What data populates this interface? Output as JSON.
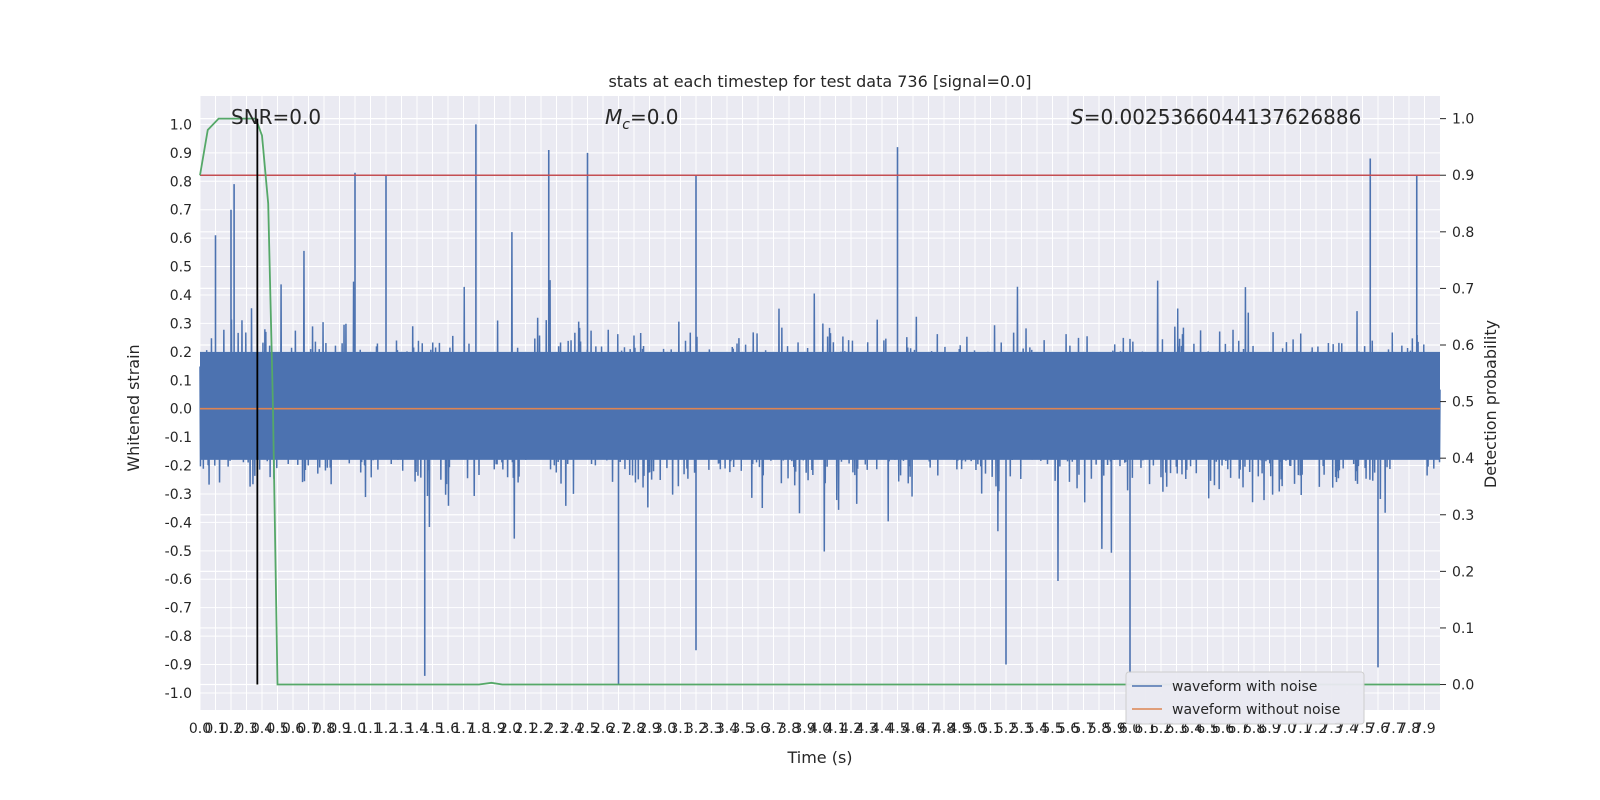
{
  "chart_data": {
    "type": "line",
    "title": "stats at each timestep for test data 736 [signal=0.0]",
    "xlabel": "Time (s)",
    "ylabel": "Whitened strain",
    "y2label": "Detection probability",
    "xlim": [
      0.0,
      8.0
    ],
    "ylim": [
      -1.06,
      1.1
    ],
    "y2lim": [
      -0.045,
      1.04
    ],
    "grid": true,
    "legend_position": "bottom-right",
    "x_ticks": [
      0.0,
      0.1,
      0.2,
      0.3,
      0.4,
      0.5,
      0.6,
      0.7,
      0.8,
      0.9,
      1.0,
      1.1,
      1.2,
      1.3,
      1.4,
      1.5,
      1.6,
      1.7,
      1.8,
      1.9,
      2.0,
      2.1,
      2.2,
      2.3,
      2.4,
      2.5,
      2.6,
      2.7,
      2.8,
      2.9,
      3.0,
      3.1,
      3.2,
      3.3,
      3.4,
      3.5,
      3.6,
      3.7,
      3.8,
      3.9,
      4.0,
      4.1,
      4.2,
      4.3,
      4.4,
      4.5,
      4.6,
      4.7,
      4.8,
      4.9,
      5.0,
      5.1,
      5.2,
      5.3,
      5.4,
      5.5,
      5.6,
      5.7,
      5.8,
      5.9,
      6.0,
      6.1,
      6.2,
      6.3,
      6.4,
      6.5,
      6.6,
      6.7,
      6.8,
      6.9,
      7.0,
      7.1,
      7.2,
      7.3,
      7.4,
      7.5,
      7.6,
      7.7,
      7.8,
      7.9
    ],
    "x_tick_labels": [
      "0.0",
      "0.1",
      "0.2",
      "0.3",
      "0.4",
      "0.5",
      "0.6",
      "0.7",
      "0.8",
      "0.9",
      "1.0",
      "1.1",
      "1.2",
      "1.3",
      "1.4",
      "1.5",
      "1.6",
      "1.7",
      "1.8",
      "1.9",
      "2.0",
      "2.1",
      "2.2",
      "2.3",
      "2.4",
      "2.5",
      "2.6",
      "2.7",
      "2.8",
      "2.9",
      "3.0",
      "3.1",
      "3.2",
      "3.3",
      "3.4",
      "3.5",
      "3.6",
      "3.7",
      "3.8",
      "3.9",
      "4.0",
      "4.1",
      "4.2",
      "4.3",
      "4.4",
      "4.5",
      "4.6",
      "4.7",
      "4.8",
      "4.9",
      "5.0",
      "5.1",
      "5.2",
      "5.3",
      "5.4",
      "5.5",
      "5.6",
      "5.7",
      "5.8",
      "5.9",
      "6.0",
      "6.1",
      "6.2",
      "6.3",
      "6.4",
      "6.5",
      "6.6",
      "6.7",
      "6.8",
      "6.9",
      "7.0",
      "7.1",
      "7.2",
      "7.3",
      "7.4",
      "7.5",
      "7.6",
      "7.7",
      "7.8",
      "7.9"
    ],
    "y_ticks": [
      1.0,
      0.9,
      0.8,
      0.7,
      0.6,
      0.5,
      0.4,
      0.3,
      0.2,
      0.1,
      0.0,
      -0.1,
      -0.2,
      -0.3,
      -0.4,
      -0.5,
      -0.6,
      -0.7,
      -0.8,
      -0.9,
      -1.0
    ],
    "y_tick_labels": [
      "1.0",
      "0.9",
      "0.8",
      "0.7",
      "0.6",
      "0.5",
      "0.4",
      "0.3",
      "0.2",
      "0.1",
      "0.0",
      "-0.1",
      "-0.2",
      "-0.3",
      "-0.4",
      "-0.5",
      "-0.6",
      "-0.7",
      "-0.8",
      "-0.9",
      "-1.0"
    ],
    "y2_ticks": [
      1.0,
      0.9,
      0.8,
      0.7,
      0.6,
      0.5,
      0.4,
      0.3,
      0.2,
      0.1,
      0.0
    ],
    "y2_tick_labels": [
      "1.0",
      "0.9",
      "0.8",
      "0.7",
      "0.6",
      "0.5",
      "0.4",
      "0.3",
      "0.2",
      "0.1",
      "0.0"
    ],
    "annotations": {
      "snr": "SNR=0.0",
      "mc_symbol": "M",
      "mc_subscript": "c",
      "mc_value": "=0.0",
      "s_symbol": "S",
      "s_value": "=0.002536604413762688​6"
    },
    "series": [
      {
        "name": "waveform with noise",
        "axis": "left",
        "color": "#4c72b0",
        "note_peaks": [
          {
            "x": 1.78,
            "y": 1.0
          },
          {
            "x": 0.1,
            "y": 0.61
          },
          {
            "x": 0.2,
            "y": 0.7
          },
          {
            "x": 0.22,
            "y": 0.79
          },
          {
            "x": 1.0,
            "y": 0.83
          },
          {
            "x": 1.2,
            "y": 0.82
          },
          {
            "x": 2.25,
            "y": 0.91
          },
          {
            "x": 2.5,
            "y": 0.9
          },
          {
            "x": 3.2,
            "y": 0.82
          },
          {
            "x": 4.5,
            "y": 0.92
          },
          {
            "x": 7.55,
            "y": 0.88
          },
          {
            "x": 7.85,
            "y": 0.82
          },
          {
            "x": 1.45,
            "y": -0.94
          },
          {
            "x": 2.7,
            "y": -0.97
          },
          {
            "x": 3.2,
            "y": -0.85
          },
          {
            "x": 6.0,
            "y": -0.93
          },
          {
            "x": 7.6,
            "y": -0.91
          },
          {
            "x": 5.2,
            "y": -0.9
          }
        ]
      },
      {
        "name": "waveform without noise",
        "axis": "left",
        "color": "#dd8452",
        "y": 0.0
      },
      {
        "name": "",
        "axis": "right",
        "color": "#55a868",
        "x": [
          0.0,
          0.05,
          0.12,
          0.2,
          0.3,
          0.36,
          0.4,
          0.44,
          0.47,
          0.5,
          1.5,
          1.8,
          1.88,
          1.95,
          2.5,
          8.0
        ],
        "y": [
          0.9,
          0.98,
          1.0,
          1.0,
          1.0,
          1.0,
          0.97,
          0.85,
          0.5,
          0.0,
          0.0,
          0.0,
          0.003,
          0.0,
          0.0,
          0.0
        ]
      }
    ],
    "threshold_line": {
      "axis": "right",
      "y": 0.9,
      "color": "#c44e52"
    },
    "vertical_marker": {
      "x": 0.37,
      "color": "#000000"
    },
    "legend": [
      {
        "label": "waveform with noise",
        "color": "#4c72b0"
      },
      {
        "label": "waveform without noise",
        "color": "#dd8452"
      }
    ],
    "colors": {
      "plot_bg": "#eaeaf2",
      "grid": "#ffffff",
      "text": "#262626"
    }
  }
}
